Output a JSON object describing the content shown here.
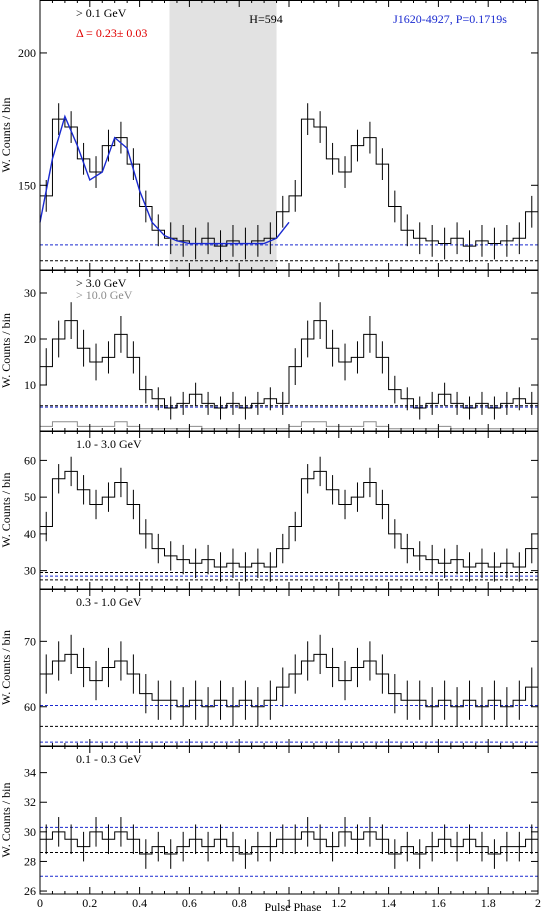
{
  "figure": {
    "pulsar_label": "J1620-4927, P=0.1719s",
    "htest_label": "H=594",
    "delta_label": "Δ = 0.23± 0.03",
    "xlabel": "Pulse Phase",
    "colors": {
      "hist": "#000000",
      "model": "#1a2ad0",
      "delta": "#e00000",
      "shade": "#e2e2e2",
      "hi_energy": "#8c8c8c"
    }
  },
  "chart_data": [
    {
      "type": "line",
      "title": "> 0.1 GeV",
      "ylabel": "W. Counts / bin",
      "ylim": [
        118,
        220
      ],
      "yticks": [
        150,
        200
      ],
      "xlim": [
        0,
        2
      ],
      "offpulse_region": [
        0.52,
        0.95
      ],
      "baselines": [
        {
          "y": 127.5,
          "color": "blue"
        },
        {
          "y": 121.5,
          "color": "black"
        }
      ],
      "x": [
        0.025,
        0.075,
        0.125,
        0.175,
        0.225,
        0.275,
        0.325,
        0.375,
        0.425,
        0.475,
        0.525,
        0.575,
        0.625,
        0.675,
        0.725,
        0.775,
        0.825,
        0.875,
        0.925,
        0.975
      ],
      "values": [
        146,
        175,
        172,
        160,
        155,
        165,
        168,
        158,
        142,
        133,
        130,
        129,
        128,
        130,
        127,
        129,
        128,
        129,
        130,
        140
      ],
      "errors": [
        6,
        6,
        6,
        6,
        6,
        6,
        6,
        6,
        6,
        6,
        6,
        6,
        6,
        6,
        6,
        6,
        6,
        6,
        6,
        6
      ],
      "model": {
        "x": [
          0,
          0.05,
          0.1,
          0.15,
          0.2,
          0.25,
          0.3,
          0.35,
          0.4,
          0.45,
          0.5,
          0.55,
          0.6,
          0.7,
          0.8,
          0.9,
          0.95,
          1.0
        ],
        "y": [
          136,
          160,
          176,
          165,
          152,
          155,
          168,
          164,
          148,
          136,
          131,
          129,
          128,
          128,
          128,
          128,
          130,
          136
        ]
      }
    },
    {
      "type": "line",
      "title": "> 3.0 GeV",
      "subtitle": "> 10.0 GeV",
      "ylabel": "W. Counts / bin",
      "ylim": [
        0,
        35
      ],
      "yticks": [
        10,
        20,
        30
      ],
      "xlim": [
        0,
        2
      ],
      "baselines": [
        {
          "y": 5.5,
          "color": "black"
        },
        {
          "y": 5.2,
          "color": "blue"
        }
      ],
      "x": [
        0.025,
        0.075,
        0.125,
        0.175,
        0.225,
        0.275,
        0.325,
        0.375,
        0.425,
        0.475,
        0.525,
        0.575,
        0.625,
        0.675,
        0.725,
        0.775,
        0.825,
        0.875,
        0.925,
        0.975
      ],
      "values": [
        14,
        20,
        24,
        18,
        15,
        16,
        21,
        16,
        9,
        7,
        5,
        6,
        8,
        6,
        5,
        6,
        5,
        6,
        7,
        6
      ],
      "errors": [
        4,
        4,
        4,
        4,
        4,
        3.5,
        4,
        3.5,
        3,
        2.5,
        2.5,
        2.5,
        2.5,
        2.5,
        2.5,
        2.5,
        2.5,
        2.5,
        2.5,
        2.5
      ],
      "series_high": [
        1,
        2,
        2,
        1,
        1,
        1,
        2,
        1,
        0.5,
        0.5,
        0.5,
        0.5,
        1,
        0.5,
        0.5,
        0.5,
        0.5,
        0.5,
        0.5,
        0.5
      ]
    },
    {
      "type": "line",
      "title": "1.0 - 3.0 GeV",
      "ylabel": "W. Counts / bin",
      "ylim": [
        25,
        68
      ],
      "yticks": [
        30,
        40,
        50,
        60
      ],
      "xlim": [
        0,
        2
      ],
      "baselines": [
        {
          "y": 29.5,
          "color": "black"
        },
        {
          "y": 28.5,
          "color": "blue"
        },
        {
          "y": 27.5,
          "color": "black"
        }
      ],
      "x": [
        0.025,
        0.075,
        0.125,
        0.175,
        0.225,
        0.275,
        0.325,
        0.375,
        0.425,
        0.475,
        0.525,
        0.575,
        0.625,
        0.675,
        0.725,
        0.775,
        0.825,
        0.875,
        0.925,
        0.975
      ],
      "values": [
        42,
        55,
        57,
        52,
        48,
        50,
        54,
        48,
        40,
        36,
        34,
        33,
        32,
        33,
        31,
        32,
        31,
        32,
        31,
        36
      ],
      "errors": [
        4,
        4,
        4,
        4,
        4,
        4,
        4,
        4,
        4,
        4,
        4,
        4,
        4,
        4,
        4,
        4,
        4,
        4,
        4,
        4
      ]
    },
    {
      "type": "line",
      "title": "0.3 - 1.0 GeV",
      "ylabel": "W. Counts / bin",
      "ylim": [
        54,
        78
      ],
      "yticks": [
        60,
        70
      ],
      "xlim": [
        0,
        2
      ],
      "baselines": [
        {
          "y": 60.2,
          "color": "blue"
        },
        {
          "y": 57,
          "color": "black"
        },
        {
          "y": 54.6,
          "color": "blue"
        }
      ],
      "x": [
        0.025,
        0.075,
        0.125,
        0.175,
        0.225,
        0.275,
        0.325,
        0.375,
        0.425,
        0.475,
        0.525,
        0.575,
        0.625,
        0.675,
        0.725,
        0.775,
        0.825,
        0.875,
        0.925,
        0.975
      ],
      "values": [
        65,
        67,
        68,
        66,
        64,
        66,
        67,
        65,
        62,
        61,
        61,
        60,
        61,
        60,
        61,
        60,
        61,
        60,
        61,
        63
      ],
      "errors": [
        3,
        3,
        3,
        3,
        3,
        3,
        3,
        3,
        3,
        3,
        3,
        3,
        3,
        3,
        3,
        3,
        3,
        3,
        3,
        3
      ]
    },
    {
      "type": "line",
      "title": "0.1 - 0.3 GeV",
      "ylabel": "W. Counts / bin",
      "xlabel": "Pulse Phase",
      "ylim": [
        25.8,
        35.8
      ],
      "yticks": [
        26,
        28,
        30,
        32,
        34
      ],
      "xlim": [
        0,
        2
      ],
      "xticks": [
        0,
        0.2,
        0.4,
        0.6,
        0.8,
        1,
        1.2,
        1.4,
        1.6,
        1.8,
        2
      ],
      "baselines": [
        {
          "y": 30.3,
          "color": "blue"
        },
        {
          "y": 28.6,
          "color": "black"
        },
        {
          "y": 27.0,
          "color": "blue"
        }
      ],
      "x": [
        0.025,
        0.075,
        0.125,
        0.175,
        0.225,
        0.275,
        0.325,
        0.375,
        0.425,
        0.475,
        0.525,
        0.575,
        0.625,
        0.675,
        0.725,
        0.775,
        0.825,
        0.875,
        0.925,
        0.975
      ],
      "values": [
        29.5,
        30,
        29.5,
        29,
        30,
        29.5,
        30,
        29.5,
        28.5,
        29,
        28.5,
        29,
        29.5,
        29,
        29.5,
        29,
        28.5,
        29,
        29,
        29.5
      ],
      "errors": [
        1,
        1,
        1,
        1,
        1,
        1,
        1,
        1,
        1,
        1,
        1,
        1,
        1,
        1,
        1,
        1,
        1,
        1,
        1,
        1
      ]
    }
  ]
}
